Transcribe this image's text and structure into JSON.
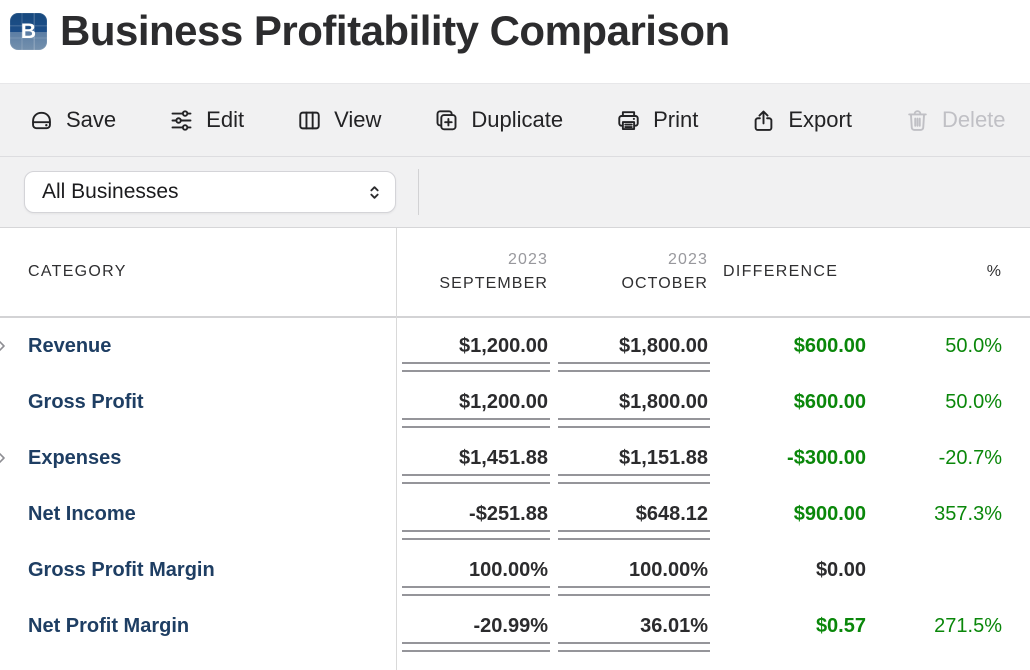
{
  "page": {
    "title": "Business Profitability Comparison",
    "app_icon_letter": "B"
  },
  "toolbar": {
    "buttons": [
      {
        "id": "save",
        "label": "Save",
        "icon": "save-icon",
        "enabled": true
      },
      {
        "id": "edit",
        "label": "Edit",
        "icon": "sliders-icon",
        "enabled": true
      },
      {
        "id": "view",
        "label": "View",
        "icon": "columns-icon",
        "enabled": true
      },
      {
        "id": "duplicate",
        "label": "Duplicate",
        "icon": "duplicate-icon",
        "enabled": true
      },
      {
        "id": "print",
        "label": "Print",
        "icon": "printer-icon",
        "enabled": true
      },
      {
        "id": "export",
        "label": "Export",
        "icon": "share-icon",
        "enabled": true
      },
      {
        "id": "delete",
        "label": "Delete",
        "icon": "trash-icon",
        "enabled": false
      }
    ]
  },
  "filters": {
    "business_select": {
      "value": "All Businesses",
      "icon": "chevron-updown-icon"
    }
  },
  "table": {
    "headers": {
      "category": "CATEGORY",
      "col1_year": "2023",
      "col1_month": "SEPTEMBER",
      "col2_year": "2023",
      "col2_month": "OCTOBER",
      "difference": "DIFFERENCE",
      "percent": "%"
    },
    "rows": [
      {
        "category": "Revenue",
        "expandable": true,
        "sep": "$1,200.00",
        "oct": "$1,800.00",
        "difference": "$600.00",
        "difference_green": true,
        "percent": "50.0%"
      },
      {
        "category": "Gross Profit",
        "expandable": false,
        "sep": "$1,200.00",
        "oct": "$1,800.00",
        "difference": "$600.00",
        "difference_green": true,
        "percent": "50.0%"
      },
      {
        "category": "Expenses",
        "expandable": true,
        "sep": "$1,451.88",
        "oct": "$1,151.88",
        "difference": "-$300.00",
        "difference_green": true,
        "percent": "-20.7%"
      },
      {
        "category": "Net Income",
        "expandable": false,
        "sep": "-$251.88",
        "oct": "$648.12",
        "difference": "$900.00",
        "difference_green": true,
        "percent": "357.3%"
      },
      {
        "category": "Gross Profit Margin",
        "expandable": false,
        "sep": "100.00%",
        "oct": "100.00%",
        "difference": "$0.00",
        "difference_green": false,
        "percent": ""
      },
      {
        "category": "Net Profit Margin",
        "expandable": false,
        "sep": "-20.99%",
        "oct": "36.01%",
        "difference": "$0.57",
        "difference_green": true,
        "percent": "271.5%"
      }
    ]
  },
  "colors": {
    "positive_green": "#0a870a",
    "category_blue": "#1e3e63",
    "app_icon_blue": "#1d4e89",
    "band_gray": "#f1f1f2"
  }
}
